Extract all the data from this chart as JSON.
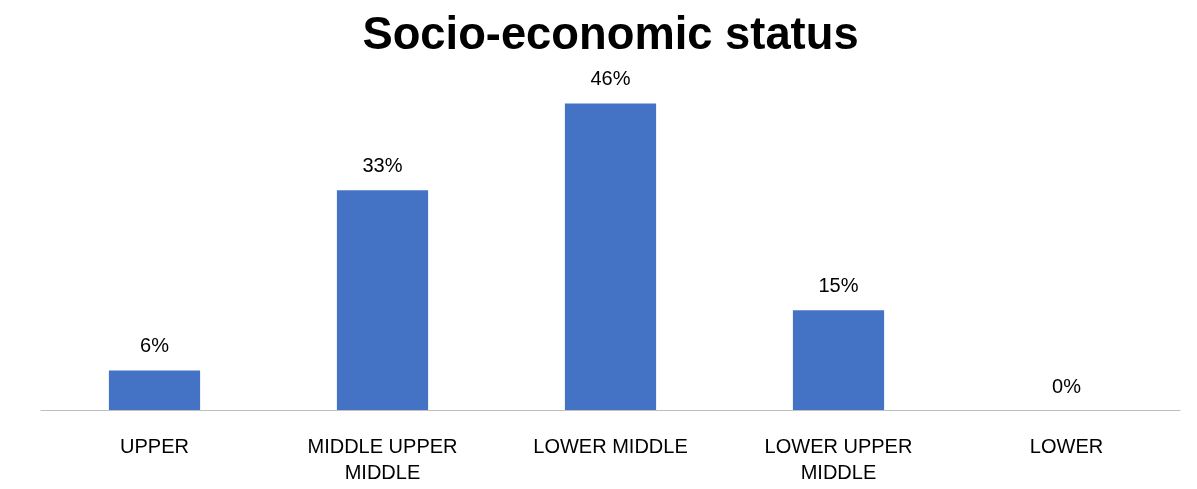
{
  "chart_data": {
    "type": "bar",
    "title": "Socio-economic status",
    "categories": [
      "UPPER",
      "MIDDLE UPPER MIDDLE",
      "LOWER MIDDLE",
      "LOWER UPPER MIDDLE",
      "LOWER"
    ],
    "values": [
      6,
      33,
      46,
      15,
      0
    ],
    "color": "#4472c4",
    "value_labels": [
      "6%",
      "33%",
      "46%",
      "15%",
      "0%"
    ]
  }
}
